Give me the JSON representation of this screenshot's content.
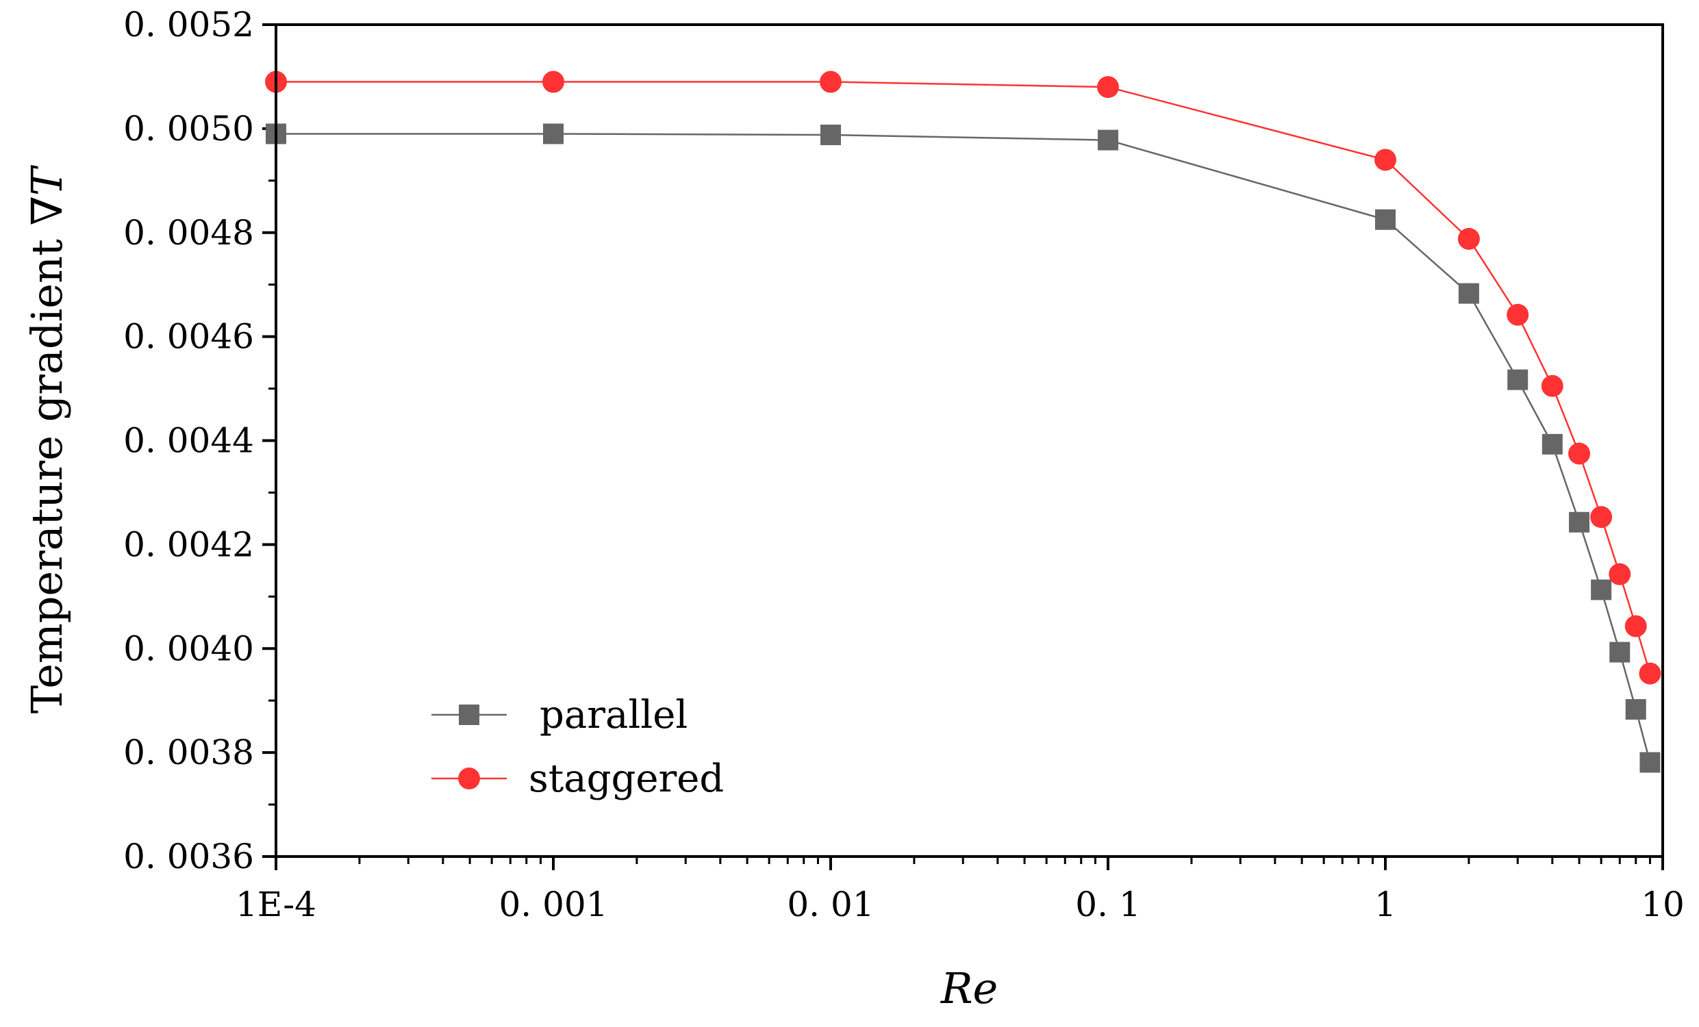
{
  "chart_data": {
    "type": "line",
    "title": "",
    "xlabel": "Re",
    "ylabel_main": "Temperature gradient ∇",
    "ylabel_italic": "T",
    "xscale": "log",
    "xlim": [
      0.0001,
      10
    ],
    "ylim": [
      0.0036,
      0.0052
    ],
    "x_ticks": [
      {
        "value": 0.0001,
        "label": "1E-4"
      },
      {
        "value": 0.001,
        "label": "0. 001"
      },
      {
        "value": 0.01,
        "label": "0. 01"
      },
      {
        "value": 0.1,
        "label": "0. 1"
      },
      {
        "value": 1,
        "label": "1"
      },
      {
        "value": 10,
        "label": "10"
      }
    ],
    "y_ticks": [
      {
        "value": 0.0036,
        "label": "0. 0036"
      },
      {
        "value": 0.0038,
        "label": "0. 0038"
      },
      {
        "value": 0.004,
        "label": "0. 0040"
      },
      {
        "value": 0.0042,
        "label": "0. 0042"
      },
      {
        "value": 0.0044,
        "label": "0. 0044"
      },
      {
        "value": 0.0046,
        "label": "0. 0046"
      },
      {
        "value": 0.0048,
        "label": "0. 0048"
      },
      {
        "value": 0.005,
        "label": "0. 0050"
      },
      {
        "value": 0.0052,
        "label": "0. 0052"
      }
    ],
    "legend_position": "bottom-left",
    "series": [
      {
        "name": "parallel",
        "marker": "square",
        "color": "#666666",
        "x": [
          0.0001,
          0.001,
          0.01,
          0.1,
          1,
          2,
          3,
          4,
          5,
          6,
          7,
          8,
          9
        ],
        "values": [
          0.00499,
          0.00499,
          0.004988,
          0.004978,
          0.004825,
          0.004683,
          0.004517,
          0.004393,
          0.004243,
          0.004113,
          0.003993,
          0.003883,
          0.003781
        ]
      },
      {
        "name": "staggered",
        "marker": "circle",
        "color": "#ff3333",
        "x": [
          0.0001,
          0.001,
          0.01,
          0.1,
          1,
          2,
          3,
          4,
          5,
          6,
          7,
          8,
          9
        ],
        "values": [
          0.00509,
          0.00509,
          0.00509,
          0.00508,
          0.00494,
          0.004788,
          0.004642,
          0.004505,
          0.004375,
          0.004253,
          0.004143,
          0.004043,
          0.003952
        ]
      }
    ]
  }
}
